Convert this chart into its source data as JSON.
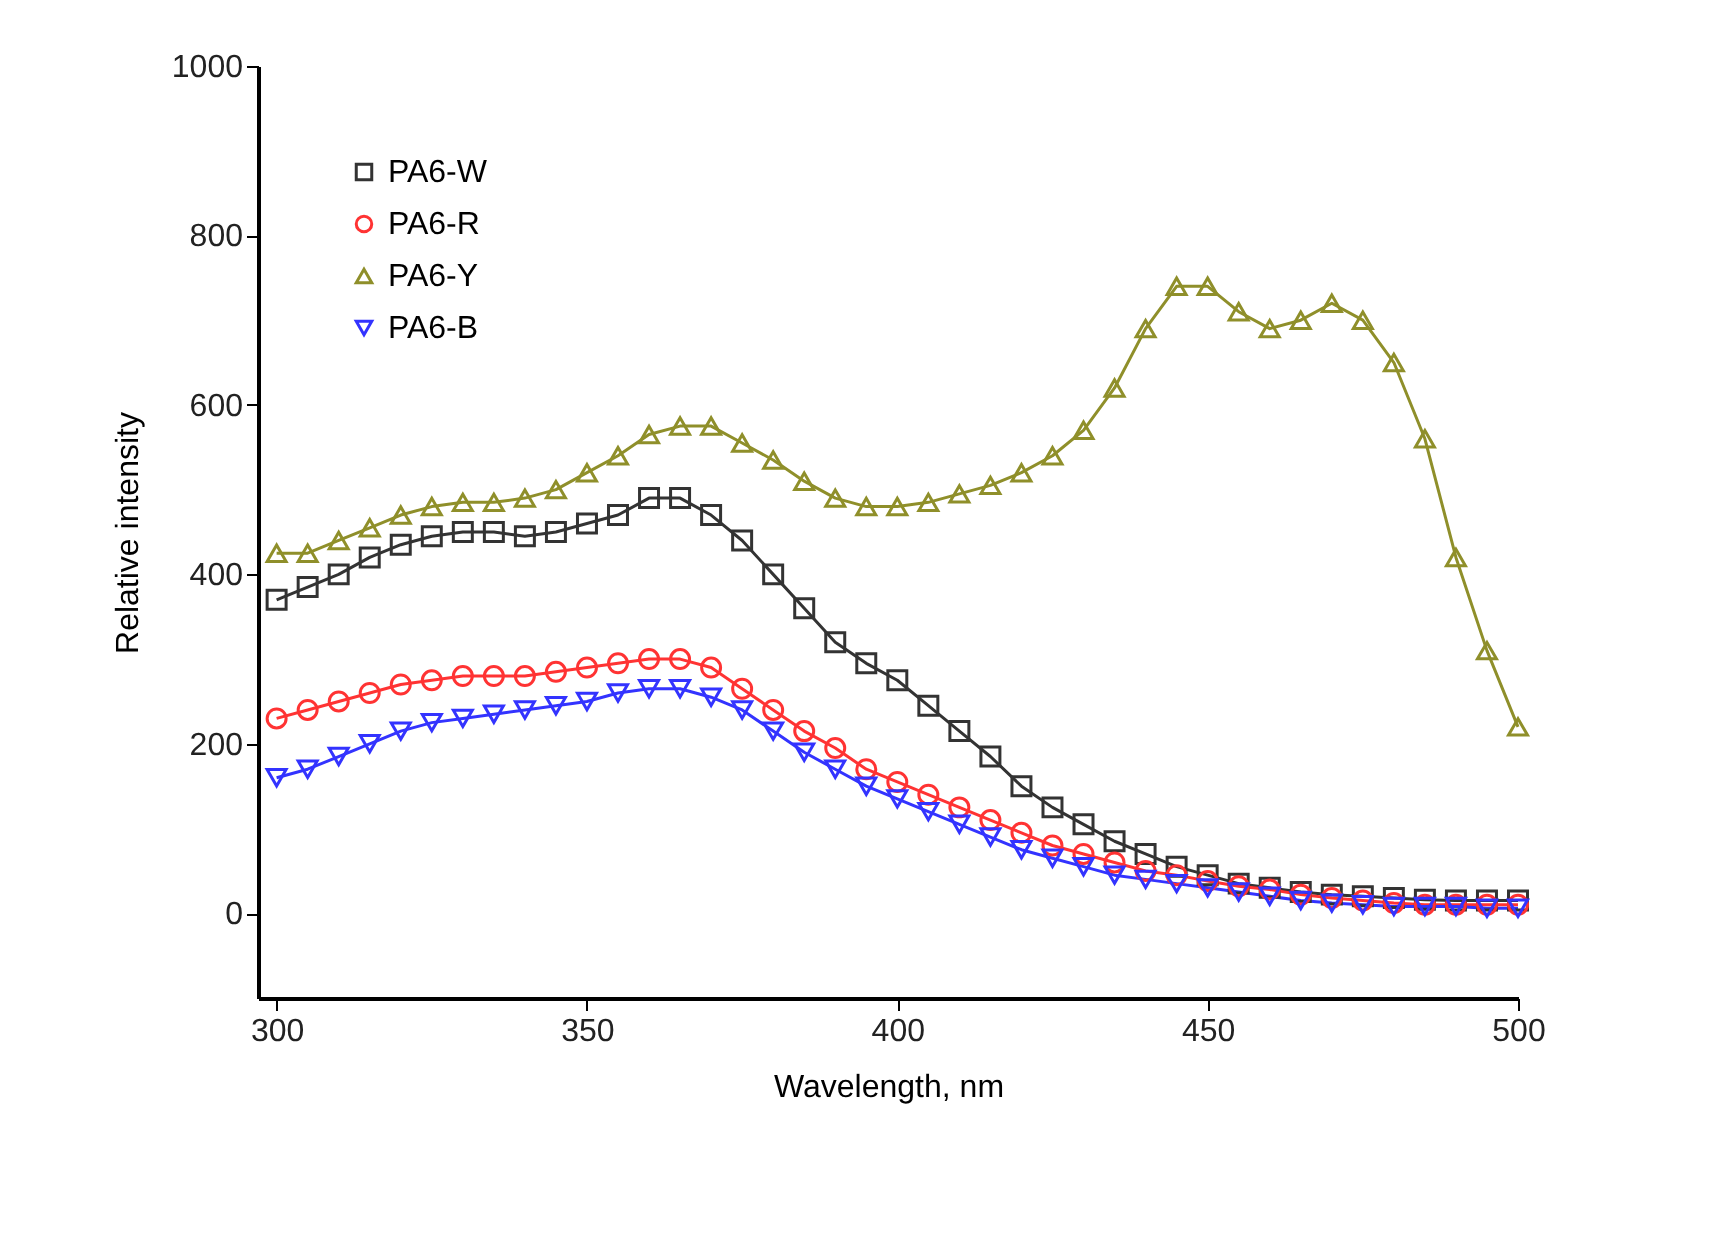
{
  "chart_data": {
    "type": "line",
    "xlabel": "Wavelength, nm",
    "ylabel": "Relative intensity",
    "x": [
      300,
      305,
      310,
      315,
      320,
      325,
      330,
      335,
      340,
      345,
      350,
      355,
      360,
      365,
      370,
      375,
      380,
      385,
      390,
      395,
      400,
      405,
      410,
      415,
      420,
      425,
      430,
      435,
      440,
      445,
      450,
      455,
      460,
      465,
      470,
      475,
      480,
      485,
      490,
      495,
      500
    ],
    "series": [
      {
        "name": "PA6-W",
        "color": "#333333",
        "marker": "square",
        "values": [
          370,
          385,
          400,
          420,
          435,
          445,
          450,
          450,
          445,
          450,
          460,
          470,
          490,
          490,
          470,
          440,
          400,
          360,
          320,
          295,
          275,
          245,
          215,
          185,
          150,
          125,
          105,
          85,
          70,
          55,
          45,
          35,
          30,
          25,
          22,
          20,
          18,
          16,
          15,
          15,
          15
        ]
      },
      {
        "name": "PA6-R",
        "color": "#ff3333",
        "marker": "circle",
        "values": [
          230,
          240,
          250,
          260,
          270,
          275,
          280,
          280,
          280,
          285,
          290,
          295,
          300,
          300,
          290,
          265,
          240,
          215,
          195,
          170,
          155,
          140,
          125,
          110,
          95,
          80,
          70,
          60,
          50,
          45,
          38,
          32,
          28,
          22,
          18,
          15,
          12,
          10,
          10,
          10,
          10
        ]
      },
      {
        "name": "PA6-Y",
        "color": "#8f8f2a",
        "marker": "triangle",
        "values": [
          425,
          425,
          440,
          455,
          470,
          480,
          485,
          485,
          490,
          500,
          520,
          540,
          565,
          575,
          575,
          555,
          535,
          510,
          490,
          480,
          480,
          485,
          495,
          505,
          520,
          540,
          570,
          620,
          690,
          740,
          740,
          710,
          690,
          700,
          720,
          700,
          650,
          560,
          420,
          310,
          220
        ]
      },
      {
        "name": "PA6-B",
        "color": "#3333ff",
        "marker": "triangle-down",
        "values": [
          160,
          170,
          185,
          200,
          215,
          225,
          230,
          235,
          240,
          245,
          250,
          260,
          265,
          265,
          255,
          240,
          215,
          190,
          170,
          150,
          135,
          120,
          105,
          90,
          75,
          65,
          55,
          45,
          40,
          35,
          30,
          25,
          20,
          15,
          12,
          10,
          8,
          8,
          8,
          6,
          6
        ]
      }
    ],
    "xlim": [
      297,
      500
    ],
    "xticks": [
      300,
      350,
      400,
      450,
      500
    ],
    "ylim": [
      -100,
      1000
    ],
    "yticks": [
      0,
      200,
      400,
      600,
      800,
      1000
    ],
    "grid": false,
    "legend": "top left",
    "line_style": "solid"
  }
}
